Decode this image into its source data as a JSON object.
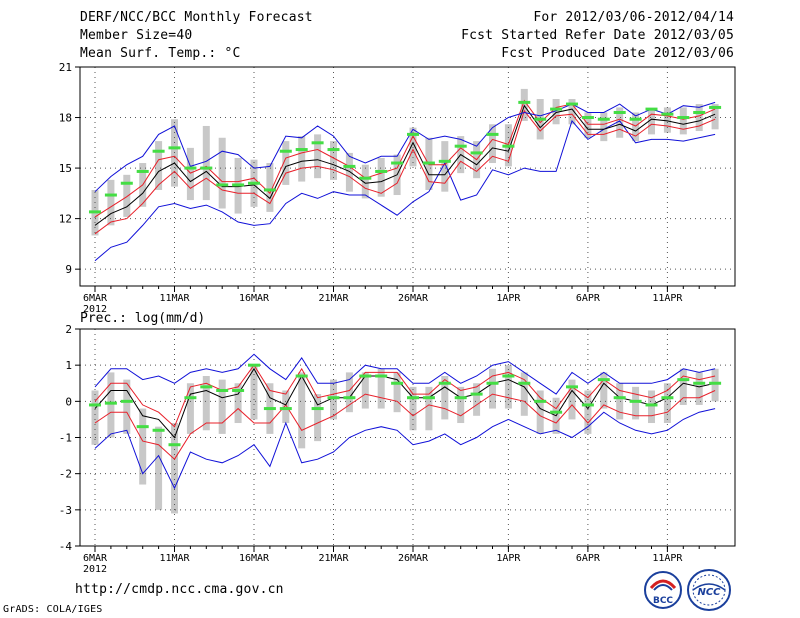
{
  "header": {
    "title": "DERF/NCC/BCC Monthly Forecast",
    "member_size": "Member Size=40",
    "variable": "Mean Surf. Temp.: °C",
    "period": "For 2012/03/06-2012/04/14",
    "fcst_started": "Fcst Started Refer Date 2012/03/05",
    "fcst_produced": "Fcst Produced Date 2012/03/06"
  },
  "footer": {
    "url": "http://cmdp.ncc.cma.gov.cn",
    "credit": "GrADS: COLA/IGES"
  },
  "logos": {
    "bcc_label": "BCC",
    "ncc_label": "NCC"
  },
  "colors": {
    "spread_bar": "#c8c8c8",
    "mean_line": "#000000",
    "red_line": "#e8202a",
    "blue_line": "#1010d8",
    "green_marker": "#44dd44"
  },
  "chart_data": [
    {
      "type": "line",
      "title": "Mean Surf. Temp.: °C",
      "xlabel": "",
      "ylabel": "°C",
      "ylim": [
        8,
        21
      ],
      "yticks": [
        9,
        12,
        15,
        18,
        21
      ],
      "x": [
        1,
        2,
        3,
        4,
        5,
        6,
        7,
        8,
        9,
        10,
        11,
        12,
        13,
        14,
        15,
        16,
        17,
        18,
        19,
        20,
        21,
        22,
        23,
        24,
        25,
        26,
        27,
        28,
        29,
        30,
        31,
        32,
        33,
        34,
        35,
        36,
        37,
        38,
        39,
        40
      ],
      "xtick_labels": [
        {
          "day": 1,
          "label": "6MAR",
          "sub": "2012"
        },
        {
          "day": 6,
          "label": "11MAR"
        },
        {
          "day": 11,
          "label": "16MAR"
        },
        {
          "day": 16,
          "label": "21MAR"
        },
        {
          "day": 21,
          "label": "26MAR"
        },
        {
          "day": 27,
          "label": "1APR"
        },
        {
          "day": 32,
          "label": "6APR"
        },
        {
          "day": 37,
          "label": "11APR"
        }
      ],
      "grid": true,
      "series": [
        {
          "name": "upper bound",
          "color": "blue",
          "values": [
            9.5,
            10.3,
            10.6,
            11.6,
            12.7,
            12.9,
            12.6,
            12.8,
            12.4,
            11.8,
            11.6,
            11.7,
            12.9,
            13.5,
            13.2,
            13.6,
            13.4,
            13.4,
            12.8,
            12.2,
            13.0,
            13.6,
            15.3,
            13.1,
            13.4,
            14.9,
            14.6,
            15.0,
            14.8,
            14.8,
            17.8,
            16.7,
            17.3,
            17.8,
            16.5,
            16.7,
            16.7,
            16.6,
            16.8,
            17.0
          ]
        },
        {
          "name": "lower red",
          "color": "red",
          "values": [
            11.1,
            11.8,
            12.0,
            12.9,
            14.0,
            14.8,
            13.8,
            14.4,
            13.7,
            13.5,
            13.5,
            12.9,
            14.7,
            15.0,
            15.1,
            14.9,
            14.5,
            13.8,
            13.5,
            14.1,
            16.1,
            14.2,
            14.1,
            15.4,
            14.8,
            15.7,
            15.4,
            18.4,
            17.2,
            18.1,
            18.2,
            17.0,
            17.0,
            17.3,
            16.9,
            17.6,
            17.5,
            17.3,
            17.5,
            17.9
          ]
        },
        {
          "name": "ensemble mean",
          "color": "black",
          "values": [
            11.6,
            12.3,
            12.7,
            13.5,
            14.8,
            15.3,
            14.2,
            14.8,
            13.9,
            13.9,
            14.0,
            13.2,
            15.1,
            15.4,
            15.5,
            15.2,
            14.8,
            14.1,
            14.2,
            14.6,
            16.5,
            14.6,
            14.6,
            15.8,
            15.2,
            16.2,
            16.0,
            18.7,
            17.4,
            18.3,
            18.5,
            17.3,
            17.3,
            17.6,
            17.2,
            17.9,
            17.8,
            17.6,
            17.8,
            18.2
          ]
        },
        {
          "name": "upper red",
          "color": "red",
          "values": [
            12.1,
            12.7,
            13.3,
            14.0,
            15.5,
            15.7,
            14.7,
            15.1,
            14.2,
            14.2,
            14.4,
            13.5,
            15.6,
            15.9,
            16.1,
            15.6,
            15.1,
            14.4,
            14.7,
            15.0,
            16.9,
            15.2,
            15.2,
            16.2,
            15.5,
            16.7,
            16.4,
            19.0,
            17.7,
            18.6,
            18.8,
            17.6,
            17.6,
            17.9,
            17.5,
            18.2,
            18.1,
            17.9,
            18.1,
            18.5
          ]
        },
        {
          "name": "lower bound",
          "color": "blue",
          "values": [
            13.6,
            14.5,
            15.2,
            15.7,
            17.0,
            17.5,
            15.1,
            15.4,
            16.0,
            15.8,
            15.0,
            15.1,
            16.9,
            16.8,
            17.5,
            16.9,
            15.7,
            15.3,
            15.7,
            15.7,
            17.3,
            16.7,
            16.9,
            16.7,
            16.3,
            17.4,
            18.0,
            18.3,
            18.1,
            18.4,
            18.8,
            18.3,
            18.3,
            18.8,
            18.1,
            18.5,
            18.2,
            18.7,
            18.6,
            18.9
          ]
        },
        {
          "name": "green marker",
          "color": "green",
          "values": [
            12.4,
            13.4,
            14.1,
            14.8,
            16.0,
            16.2,
            15.0,
            15.0,
            14.0,
            14.0,
            14.1,
            13.7,
            16.0,
            16.1,
            16.5,
            16.1,
            15.1,
            14.4,
            14.8,
            15.3,
            17.0,
            15.3,
            15.4,
            16.3,
            15.9,
            17.0,
            16.3,
            18.9,
            17.9,
            18.5,
            18.8,
            18.0,
            17.9,
            18.3,
            17.9,
            18.5,
            18.2,
            18.0,
            18.3,
            18.6
          ]
        }
      ],
      "spread_bars": [
        [
          11.0,
          13.7
        ],
        [
          11.6,
          14.3
        ],
        [
          12.1,
          14.6
        ],
        [
          12.7,
          15.3
        ],
        [
          13.7,
          16.6
        ],
        [
          13.9,
          17.9
        ],
        [
          13.1,
          16.2
        ],
        [
          13.1,
          17.5
        ],
        [
          12.6,
          16.8
        ],
        [
          12.3,
          15.6
        ],
        [
          12.7,
          15.5
        ],
        [
          12.4,
          15.3
        ],
        [
          14.0,
          16.6
        ],
        [
          14.2,
          16.9
        ],
        [
          14.4,
          17.0
        ],
        [
          14.3,
          16.6
        ],
        [
          13.6,
          15.9
        ],
        [
          13.2,
          15.2
        ],
        [
          13.3,
          15.6
        ],
        [
          13.4,
          15.8
        ],
        [
          15.1,
          17.4
        ],
        [
          13.7,
          16.8
        ],
        [
          13.6,
          16.6
        ],
        [
          14.7,
          16.9
        ],
        [
          14.4,
          16.6
        ],
        [
          15.3,
          17.6
        ],
        [
          15.1,
          17.6
        ],
        [
          17.8,
          19.7
        ],
        [
          16.7,
          19.1
        ],
        [
          17.6,
          19.1
        ],
        [
          17.6,
          19.1
        ],
        [
          16.8,
          18.3
        ],
        [
          16.6,
          18.3
        ],
        [
          16.8,
          18.6
        ],
        [
          16.6,
          18.3
        ],
        [
          17.0,
          18.5
        ],
        [
          17.1,
          18.6
        ],
        [
          17.0,
          18.6
        ],
        [
          17.2,
          18.8
        ],
        [
          17.3,
          18.8
        ]
      ]
    },
    {
      "type": "line",
      "title": "Prec.: log(mm/d)",
      "xlabel": "",
      "ylabel": "log(mm/d)",
      "ylim": [
        -4,
        2
      ],
      "yticks": [
        -4,
        -3,
        -2,
        -1,
        0,
        1,
        2
      ],
      "x": [
        1,
        2,
        3,
        4,
        5,
        6,
        7,
        8,
        9,
        10,
        11,
        12,
        13,
        14,
        15,
        16,
        17,
        18,
        19,
        20,
        21,
        22,
        23,
        24,
        25,
        26,
        27,
        28,
        29,
        30,
        31,
        32,
        33,
        34,
        35,
        36,
        37,
        38,
        39,
        40
      ],
      "xtick_labels": [
        {
          "day": 1,
          "label": "6MAR",
          "sub": "2012"
        },
        {
          "day": 6,
          "label": "11MAR"
        },
        {
          "day": 11,
          "label": "16MAR"
        },
        {
          "day": 16,
          "label": "21MAR"
        },
        {
          "day": 21,
          "label": "26MAR"
        },
        {
          "day": 27,
          "label": "1APR"
        },
        {
          "day": 32,
          "label": "6APR"
        },
        {
          "day": 37,
          "label": "11APR"
        }
      ],
      "grid": true,
      "series": [
        {
          "name": "lower bound",
          "color": "blue",
          "values": [
            -1.3,
            -0.9,
            -0.8,
            -2.0,
            -1.5,
            -2.4,
            -1.4,
            -1.6,
            -1.7,
            -1.5,
            -1.2,
            -1.8,
            -0.6,
            -1.7,
            -1.6,
            -1.4,
            -1.0,
            -0.8,
            -0.7,
            -0.8,
            -1.2,
            -1.1,
            -0.9,
            -1.2,
            -1.0,
            -0.7,
            -0.5,
            -0.7,
            -0.9,
            -0.8,
            -1.0,
            -0.7,
            -0.3,
            -0.6,
            -0.8,
            -0.9,
            -0.8,
            -0.5,
            -0.3,
            -0.2
          ]
        },
        {
          "name": "lower red",
          "color": "red",
          "values": [
            -0.6,
            -0.3,
            -0.3,
            -1.1,
            -1.2,
            -1.6,
            -0.9,
            -0.6,
            -0.6,
            -0.2,
            -0.6,
            -0.6,
            -0.1,
            -0.8,
            -0.6,
            -0.4,
            -0.1,
            0.2,
            0.1,
            0.0,
            -0.4,
            -0.1,
            -0.2,
            -0.4,
            -0.1,
            0.2,
            0.1,
            0.0,
            -0.4,
            -0.6,
            -0.1,
            -0.6,
            -0.1,
            -0.3,
            -0.4,
            -0.4,
            -0.3,
            0.1,
            0.1,
            0.3
          ]
        },
        {
          "name": "ensemble mean",
          "color": "black",
          "values": [
            -0.2,
            0.3,
            0.3,
            -0.4,
            -0.5,
            -1.0,
            0.2,
            0.3,
            0.1,
            0.2,
            0.9,
            0.1,
            -0.1,
            0.7,
            -0.1,
            0.1,
            0.1,
            0.7,
            0.7,
            0.6,
            0.1,
            0.1,
            0.4,
            0.1,
            0.2,
            0.5,
            0.6,
            0.4,
            -0.2,
            -0.4,
            0.3,
            -0.2,
            0.5,
            0.1,
            0.0,
            -0.1,
            0.1,
            0.5,
            0.4,
            0.5
          ]
        },
        {
          "name": "upper red",
          "color": "red",
          "values": [
            0.0,
            0.5,
            0.5,
            -0.1,
            -0.3,
            -0.7,
            0.4,
            0.5,
            0.3,
            0.4,
            1.0,
            0.3,
            0.2,
            0.9,
            0.1,
            0.2,
            0.3,
            0.8,
            0.8,
            0.8,
            0.2,
            0.2,
            0.6,
            0.3,
            0.4,
            0.7,
            0.8,
            0.6,
            0.1,
            -0.2,
            0.4,
            0.1,
            0.6,
            0.3,
            0.2,
            0.1,
            0.3,
            0.7,
            0.6,
            0.7
          ]
        },
        {
          "name": "upper bound",
          "color": "blue",
          "values": [
            0.4,
            0.9,
            0.9,
            0.6,
            0.7,
            0.5,
            0.8,
            0.9,
            0.8,
            0.9,
            1.3,
            0.9,
            0.6,
            1.2,
            0.5,
            0.5,
            0.6,
            1.0,
            0.9,
            0.9,
            0.5,
            0.5,
            0.8,
            0.5,
            0.7,
            1.0,
            1.1,
            0.8,
            0.5,
            0.2,
            0.8,
            0.5,
            0.8,
            0.5,
            0.5,
            0.5,
            0.6,
            0.9,
            0.8,
            0.9
          ]
        },
        {
          "name": "green marker",
          "color": "green",
          "values": [
            -0.1,
            -0.05,
            0.0,
            -0.7,
            -0.8,
            -1.2,
            0.1,
            0.4,
            0.3,
            0.3,
            1.0,
            -0.2,
            -0.2,
            0.7,
            -0.2,
            0.1,
            0.1,
            0.7,
            0.7,
            0.5,
            0.1,
            0.1,
            0.5,
            0.1,
            0.2,
            0.5,
            0.7,
            0.5,
            0.0,
            -0.3,
            0.4,
            -0.1,
            0.6,
            0.1,
            0.0,
            -0.1,
            0.1,
            0.6,
            0.5,
            0.5
          ]
        }
      ],
      "spread_bars": [
        [
          -1.2,
          0.3
        ],
        [
          -1.0,
          0.8
        ],
        [
          -0.9,
          0.6
        ],
        [
          -2.3,
          -0.2
        ],
        [
          -3.0,
          -0.7
        ],
        [
          -3.1,
          -0.6
        ],
        [
          -0.9,
          0.5
        ],
        [
          -0.8,
          0.7
        ],
        [
          -0.9,
          0.6
        ],
        [
          -0.6,
          0.5
        ],
        [
          -0.5,
          1.0
        ],
        [
          -0.9,
          0.5
        ],
        [
          -0.6,
          0.3
        ],
        [
          -1.3,
          0.8
        ],
        [
          -1.1,
          0.2
        ],
        [
          -0.5,
          0.6
        ],
        [
          -0.3,
          0.8
        ],
        [
          -0.2,
          0.8
        ],
        [
          -0.2,
          0.9
        ],
        [
          -0.3,
          0.8
        ],
        [
          -0.8,
          0.4
        ],
        [
          -0.8,
          0.4
        ],
        [
          -0.5,
          0.7
        ],
        [
          -0.6,
          0.4
        ],
        [
          -0.4,
          0.5
        ],
        [
          -0.2,
          0.9
        ],
        [
          -0.2,
          1.0
        ],
        [
          -0.4,
          0.8
        ],
        [
          -0.9,
          0.3
        ],
        [
          -0.9,
          0.1
        ],
        [
          -0.5,
          0.6
        ],
        [
          -0.9,
          0.3
        ],
        [
          -0.2,
          0.8
        ],
        [
          -0.5,
          0.5
        ],
        [
          -0.5,
          0.4
        ],
        [
          -0.6,
          0.3
        ],
        [
          -0.6,
          0.5
        ],
        [
          -0.1,
          0.9
        ],
        [
          -0.1,
          0.8
        ],
        [
          0.0,
          0.9
        ]
      ]
    }
  ]
}
